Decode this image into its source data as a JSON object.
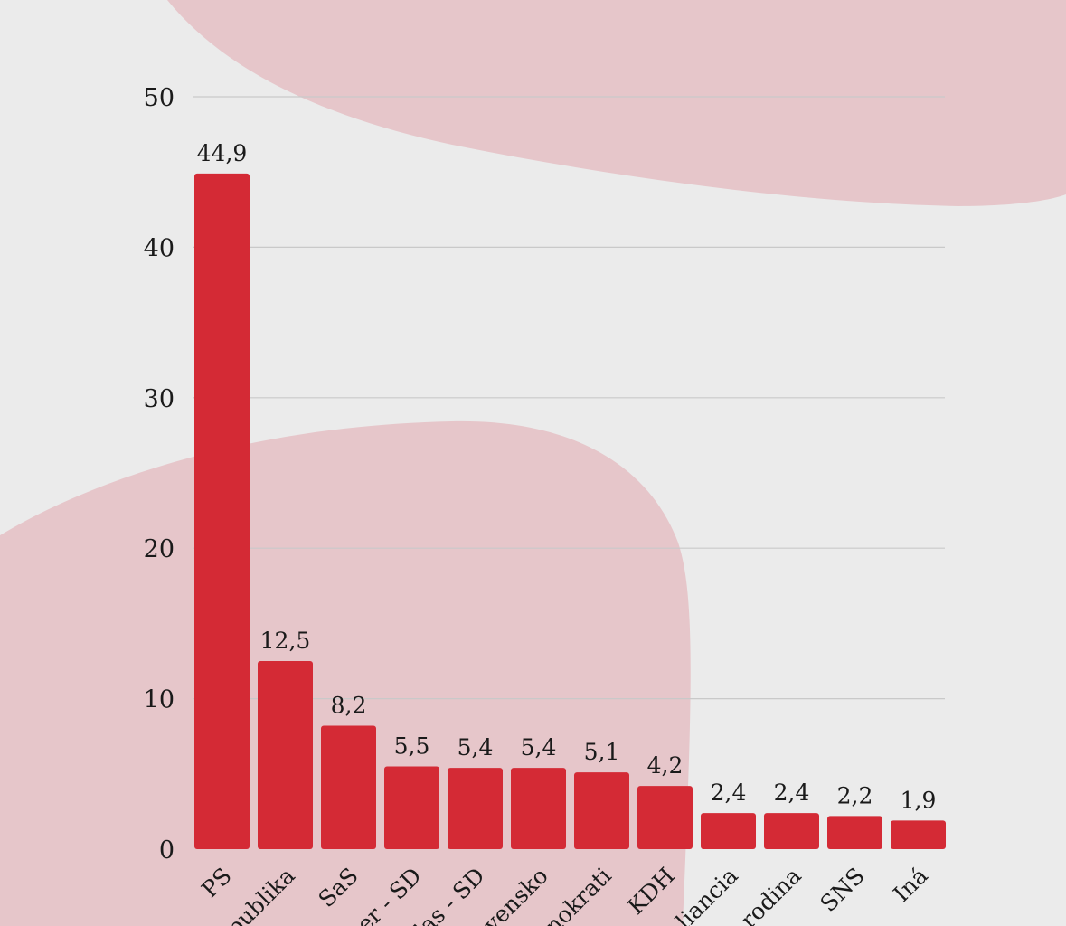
{
  "chart_data": {
    "type": "bar",
    "title": "",
    "xlabel": "",
    "ylabel": "",
    "ylim": [
      0,
      50
    ],
    "yticks": [
      0,
      10,
      20,
      30,
      40,
      50
    ],
    "grid": true,
    "categories": [
      "PS",
      "publika",
      "SaS",
      "er - SD",
      "las - SD",
      "vensko",
      "nokrati",
      "KDH",
      "liancia",
      "rodina",
      "SNS",
      "Iná"
    ],
    "values": [
      44.9,
      12.5,
      8.2,
      5.5,
      5.4,
      5.4,
      5.1,
      4.2,
      2.4,
      2.4,
      2.2,
      1.9
    ],
    "value_labels": [
      "44,9",
      "12,5",
      "8,2",
      "5,5",
      "5,4",
      "5,4",
      "5,1",
      "4,2",
      "2,4",
      "2,4",
      "2,2",
      "1,9"
    ],
    "colors": {
      "bar": "#d42a35",
      "background": "#ebebeb",
      "blob": "#e6c6ca",
      "grid": "#c9c9c9"
    }
  }
}
